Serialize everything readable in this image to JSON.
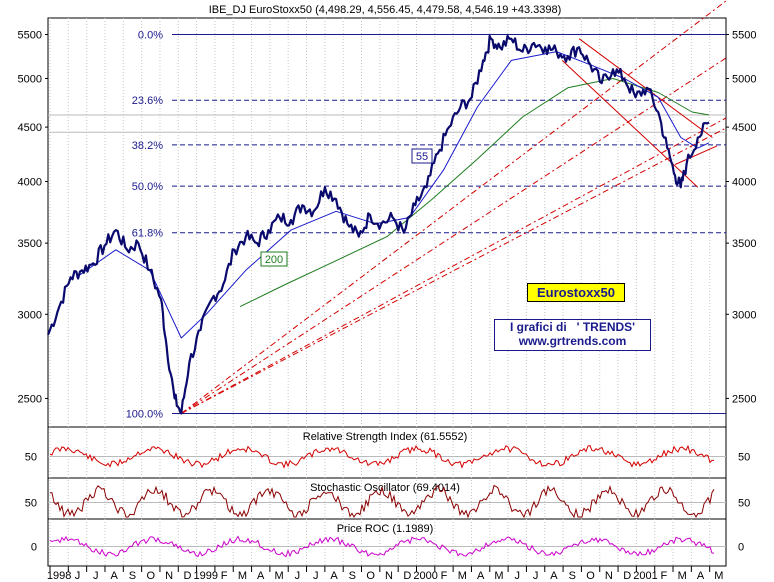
{
  "chart_data": {
    "type": "line",
    "title": "IBE_DJ EuroStoxx50 (4,498.29, 4,556.45, 4,479.58, 4,546.19 +43.3398)",
    "ylim": [
      2350,
      5700
    ],
    "y_scale": "log",
    "y_ticks": [
      "5500",
      "5000",
      "4500",
      "4000",
      "3500",
      "3000",
      "2500"
    ],
    "x_ticks": [
      "1998",
      "J",
      "J",
      "A",
      "S",
      "O",
      "N",
      "D",
      "1999",
      "F",
      "M",
      "A",
      "M",
      "J",
      "J",
      "A",
      "S",
      "O",
      "N",
      "D",
      "2000",
      "F",
      "M",
      "A",
      "M",
      "J",
      "J",
      "A",
      "S",
      "O",
      "N",
      "D",
      "2001",
      "F",
      "M",
      "A",
      "M"
    ],
    "fib_levels": [
      {
        "label": "0.0%",
        "value": 5500
      },
      {
        "label": "23.6%",
        "value": 4770
      },
      {
        "label": "38.2%",
        "value": 4330
      },
      {
        "label": "50.0%",
        "value": 3960
      },
      {
        "label": "61.8%",
        "value": 3580
      },
      {
        "label": "100.0%",
        "value": 2420
      }
    ],
    "ma_labels": [
      "55",
      "200"
    ],
    "brand_label": "Eurostoxx50",
    "brand_line1": "I grafici di   ' TRENDS'",
    "brand_line2": "www.grtrends.com",
    "price": [
      {
        "d": 0,
        "v": 2870
      },
      {
        "d": 10,
        "v": 3050
      },
      {
        "d": 20,
        "v": 3250
      },
      {
        "d": 30,
        "v": 3300
      },
      {
        "d": 40,
        "v": 3350
      },
      {
        "d": 50,
        "v": 3480
      },
      {
        "d": 60,
        "v": 3600
      },
      {
        "d": 70,
        "v": 3450
      },
      {
        "d": 80,
        "v": 3500
      },
      {
        "d": 90,
        "v": 3300
      },
      {
        "d": 100,
        "v": 3100
      },
      {
        "d": 105,
        "v": 2800
      },
      {
        "d": 112,
        "v": 2500
      },
      {
        "d": 118,
        "v": 2420
      },
      {
        "d": 125,
        "v": 2700
      },
      {
        "d": 135,
        "v": 2900
      },
      {
        "d": 145,
        "v": 3100
      },
      {
        "d": 155,
        "v": 3200
      },
      {
        "d": 165,
        "v": 3450
      },
      {
        "d": 175,
        "v": 3550
      },
      {
        "d": 185,
        "v": 3500
      },
      {
        "d": 195,
        "v": 3600
      },
      {
        "d": 205,
        "v": 3700
      },
      {
        "d": 215,
        "v": 3680
      },
      {
        "d": 225,
        "v": 3800
      },
      {
        "d": 235,
        "v": 3750
      },
      {
        "d": 245,
        "v": 3950
      },
      {
        "d": 255,
        "v": 3850
      },
      {
        "d": 265,
        "v": 3650
      },
      {
        "d": 275,
        "v": 3550
      },
      {
        "d": 285,
        "v": 3720
      },
      {
        "d": 295,
        "v": 3650
      },
      {
        "d": 305,
        "v": 3700
      },
      {
        "d": 315,
        "v": 3580
      },
      {
        "d": 325,
        "v": 3800
      },
      {
        "d": 335,
        "v": 3950
      },
      {
        "d": 345,
        "v": 4250
      },
      {
        "d": 355,
        "v": 4500
      },
      {
        "d": 365,
        "v": 4700
      },
      {
        "d": 375,
        "v": 4800
      },
      {
        "d": 385,
        "v": 5200
      },
      {
        "d": 392,
        "v": 5450
      },
      {
        "d": 400,
        "v": 5350
      },
      {
        "d": 410,
        "v": 5450
      },
      {
        "d": 420,
        "v": 5300
      },
      {
        "d": 430,
        "v": 5400
      },
      {
        "d": 440,
        "v": 5350
      },
      {
        "d": 450,
        "v": 5300
      },
      {
        "d": 460,
        "v": 5250
      },
      {
        "d": 470,
        "v": 5350
      },
      {
        "d": 480,
        "v": 5150
      },
      {
        "d": 490,
        "v": 4950
      },
      {
        "d": 500,
        "v": 5100
      },
      {
        "d": 510,
        "v": 5000
      },
      {
        "d": 520,
        "v": 4800
      },
      {
        "d": 530,
        "v": 4900
      },
      {
        "d": 540,
        "v": 4650
      },
      {
        "d": 548,
        "v": 4300
      },
      {
        "d": 555,
        "v": 4050
      },
      {
        "d": 560,
        "v": 3950
      },
      {
        "d": 565,
        "v": 4150
      },
      {
        "d": 575,
        "v": 4400
      },
      {
        "d": 585,
        "v": 4546
      }
    ],
    "ma55": [
      {
        "d": 25,
        "v": 3250
      },
      {
        "d": 60,
        "v": 3450
      },
      {
        "d": 90,
        "v": 3300
      },
      {
        "d": 118,
        "v": 2850
      },
      {
        "d": 140,
        "v": 3000
      },
      {
        "d": 175,
        "v": 3300
      },
      {
        "d": 215,
        "v": 3600
      },
      {
        "d": 255,
        "v": 3750
      },
      {
        "d": 290,
        "v": 3650
      },
      {
        "d": 320,
        "v": 3700
      },
      {
        "d": 350,
        "v": 4100
      },
      {
        "d": 380,
        "v": 4700
      },
      {
        "d": 410,
        "v": 5200
      },
      {
        "d": 450,
        "v": 5300
      },
      {
        "d": 480,
        "v": 5150
      },
      {
        "d": 510,
        "v": 5000
      },
      {
        "d": 540,
        "v": 4800
      },
      {
        "d": 560,
        "v": 4400
      },
      {
        "d": 575,
        "v": 4300
      },
      {
        "d": 585,
        "v": 4350
      }
    ],
    "ma200": [
      {
        "d": 170,
        "v": 3050
      },
      {
        "d": 210,
        "v": 3200
      },
      {
        "d": 250,
        "v": 3350
      },
      {
        "d": 300,
        "v": 3550
      },
      {
        "d": 340,
        "v": 3850
      },
      {
        "d": 380,
        "v": 4200
      },
      {
        "d": 420,
        "v": 4600
      },
      {
        "d": 460,
        "v": 4900
      },
      {
        "d": 500,
        "v": 5000
      },
      {
        "d": 540,
        "v": 4850
      },
      {
        "d": 570,
        "v": 4650
      },
      {
        "d": 585,
        "v": 4620
      }
    ],
    "subpanels": [
      {
        "title": "Relative Strength Index (61.5552)",
        "tick": "50"
      },
      {
        "title": "Stochastic Oscillator (69.4014)",
        "tick": "50"
      },
      {
        "title": "Price ROC (1.1989)",
        "tick": "0"
      }
    ]
  }
}
